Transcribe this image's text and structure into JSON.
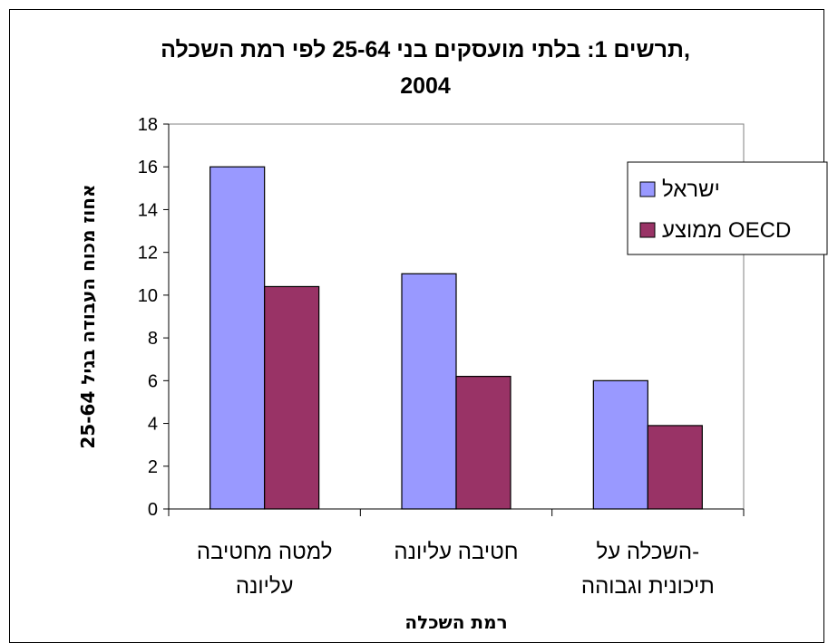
{
  "chart_data": {
    "type": "bar",
    "title_lines": [
      "תרשים 1: בלתי מועסקים בני 25-64 לפי רמת השכלה,",
      "2004"
    ],
    "categories": [
      [
        "למטה מחטיבה",
        "עליונה"
      ],
      [
        "חטיבה עליונה"
      ],
      [
        "השכלה על-",
        "תיכונית וגבוהה"
      ]
    ],
    "series": [
      {
        "name": "ישראל",
        "color": "#9999ff",
        "values": [
          16.0,
          11.0,
          6.0
        ]
      },
      {
        "name": "ממוצע OECD",
        "color": "#993366",
        "values": [
          10.4,
          6.2,
          3.9
        ]
      }
    ],
    "xlabel": "רמת השכלה",
    "ylabel": "אחוז מכוח העבודה בגיל 25-64",
    "ylim": [
      0,
      18
    ],
    "yticks": [
      0,
      2,
      4,
      6,
      8,
      10,
      12,
      14,
      16,
      18
    ],
    "grid": false,
    "legend_position": "right"
  }
}
